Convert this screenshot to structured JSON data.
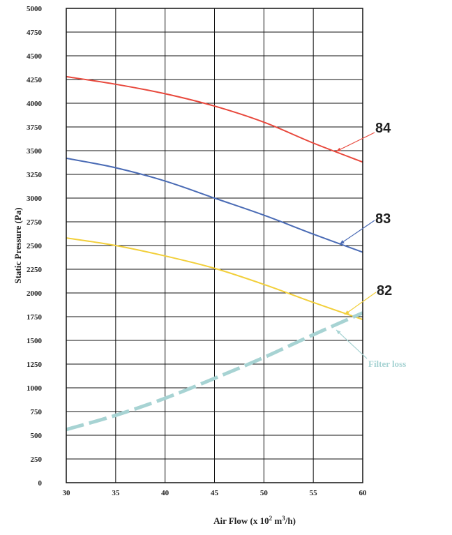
{
  "chart_data": {
    "type": "line",
    "xlabel": "Air Flow (x 10",
    "xlabel_sup1": "2",
    "xlabel_mid": " m",
    "xlabel_sup2": "3",
    "xlabel_end": "/h)",
    "ylabel": "Static Pressure (Pa)",
    "xlim": [
      30,
      60
    ],
    "ylim": [
      0,
      5000
    ],
    "x_ticks": [
      30,
      35,
      40,
      45,
      50,
      55,
      60
    ],
    "y_ticks": [
      0,
      250,
      500,
      750,
      1000,
      1250,
      1500,
      1750,
      2000,
      2250,
      2500,
      2750,
      3000,
      3250,
      3500,
      3750,
      4000,
      4250,
      4500,
      4750,
      5000
    ],
    "grid": true,
    "series": [
      {
        "name": "84",
        "color": "#e8483c",
        "style": "solid",
        "x": [
          30,
          35,
          40,
          45,
          50,
          55,
          60
        ],
        "y": [
          4280,
          4200,
          4100,
          3970,
          3800,
          3580,
          3380
        ]
      },
      {
        "name": "83",
        "color": "#4a6bb5",
        "style": "solid",
        "x": [
          30,
          35,
          40,
          45,
          50,
          55,
          60
        ],
        "y": [
          3420,
          3320,
          3180,
          3000,
          2820,
          2620,
          2430
        ]
      },
      {
        "name": "82",
        "color": "#f2cf3a",
        "style": "solid",
        "x": [
          30,
          35,
          40,
          45,
          50,
          55,
          60
        ],
        "y": [
          2580,
          2500,
          2390,
          2260,
          2090,
          1900,
          1720
        ]
      },
      {
        "name": "Filter loss",
        "color": "#a7d3d3",
        "style": "dashed",
        "x": [
          30,
          35,
          40,
          45,
          50,
          55,
          60
        ],
        "y": [
          560,
          710,
          890,
          1100,
          1320,
          1560,
          1790
        ]
      }
    ]
  }
}
